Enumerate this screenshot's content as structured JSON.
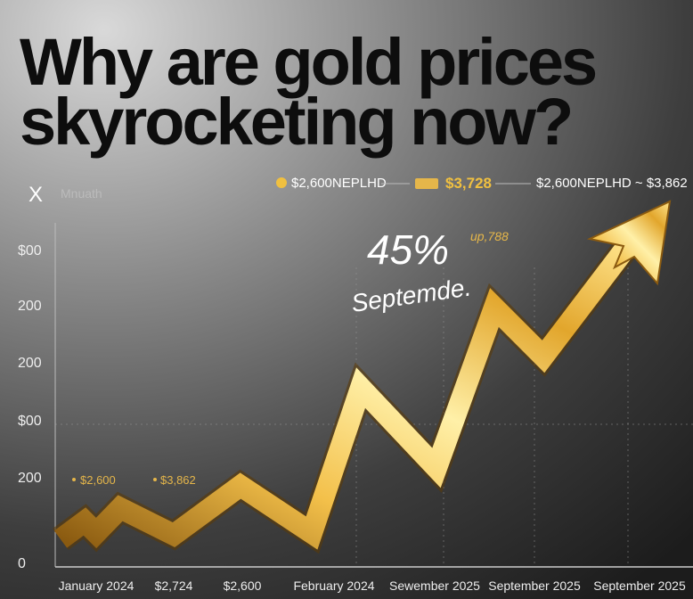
{
  "header": {
    "title": [
      "Why are gold prices",
      "skyrocketing now?"
    ]
  },
  "legend": {
    "items": [
      "$2,600NEPLHD",
      "$3,728",
      "$2,600NEPLHD ~ $3,862"
    ]
  },
  "axis": {
    "symbol": "X",
    "caption": "Mnuath",
    "y_labels": [
      "$00",
      "200",
      "200",
      "$00",
      "200",
      "0"
    ],
    "x_labels": [
      "January 2024",
      "$2,724",
      "$2,600",
      "February 2024",
      "Sewember 2025",
      "September 2025",
      "September 2025"
    ]
  },
  "annotations": {
    "percent": "45%",
    "note": "up,788",
    "month": "Septemde."
  },
  "point_labels": [
    "$2,600",
    "$3,862"
  ]
}
